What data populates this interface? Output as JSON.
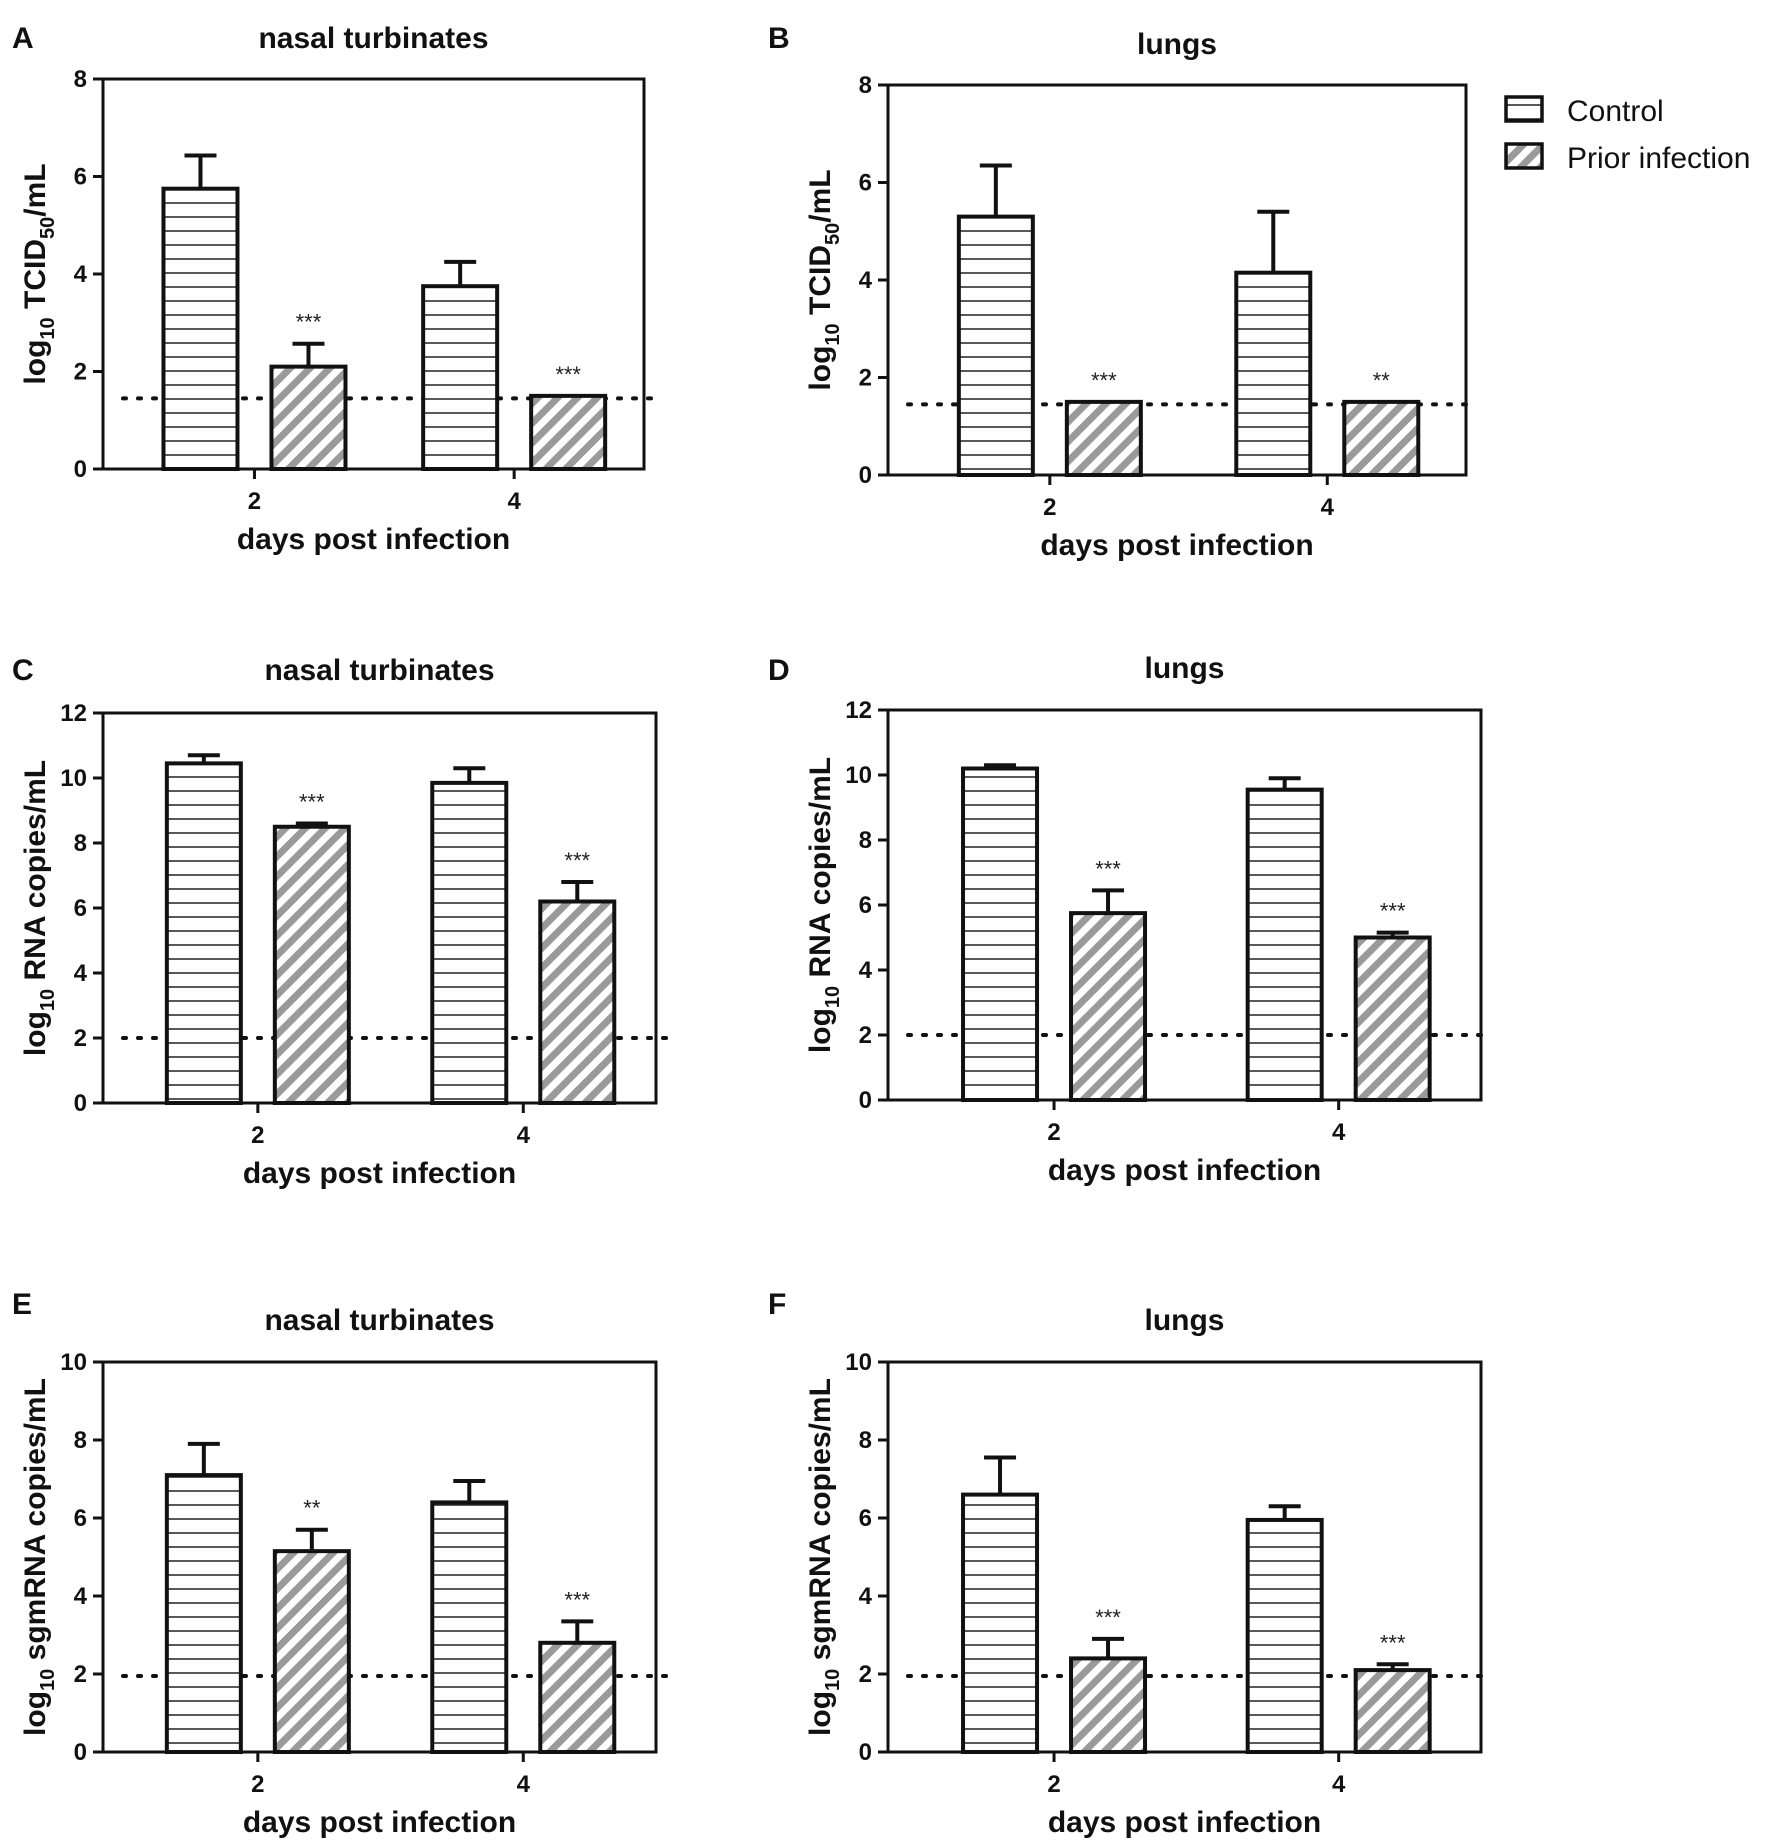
{
  "chart_data": [
    {
      "type": "bar",
      "panel": "A",
      "title": "nasal turbinates",
      "ylabel": {
        "prefix": "log",
        "sub": "10",
        "main": " TCID",
        "sub2": "50",
        "suffix": "/mL"
      },
      "xlabel": "days post infection",
      "categories": [
        "2",
        "4"
      ],
      "ylim": [
        0,
        8
      ],
      "yticks": [
        "0",
        "2",
        "4",
        "6",
        "8"
      ],
      "limit_of_detection": 1.45,
      "series": [
        {
          "name": "Control",
          "values": [
            5.75,
            3.75
          ],
          "errors": [
            0.68,
            0.5
          ]
        },
        {
          "name": "Prior infection",
          "values": [
            2.1,
            1.5
          ],
          "errors": [
            0.47,
            0
          ]
        }
      ],
      "significance": [
        "***",
        "***"
      ]
    },
    {
      "type": "bar",
      "panel": "B",
      "title": "lungs",
      "ylabel": {
        "prefix": "log",
        "sub": "10",
        "main": " TCID",
        "sub2": "50",
        "suffix": "/mL"
      },
      "xlabel": "days post infection",
      "categories": [
        "2",
        "4"
      ],
      "ylim": [
        0,
        8
      ],
      "yticks": [
        "0",
        "2",
        "4",
        "6",
        "8"
      ],
      "limit_of_detection": 1.45,
      "series": [
        {
          "name": "Control",
          "values": [
            5.3,
            4.15
          ],
          "errors": [
            1.05,
            1.25
          ]
        },
        {
          "name": "Prior infection",
          "values": [
            1.5,
            1.5
          ],
          "errors": [
            0,
            0
          ]
        }
      ],
      "significance": [
        "***",
        "**"
      ]
    },
    {
      "type": "bar",
      "panel": "C",
      "title": "nasal turbinates",
      "ylabel": {
        "prefix": "log",
        "sub": "10",
        "main": " RNA copies/mL",
        "sub2": "",
        "suffix": ""
      },
      "xlabel": "days post infection",
      "categories": [
        "2",
        "4"
      ],
      "ylim": [
        0,
        12
      ],
      "yticks": [
        "0",
        "2",
        "4",
        "6",
        "8",
        "10",
        "12"
      ],
      "limit_of_detection": 2.0,
      "series": [
        {
          "name": "Control",
          "values": [
            10.45,
            9.85
          ],
          "errors": [
            0.25,
            0.45
          ]
        },
        {
          "name": "Prior infection",
          "values": [
            8.5,
            6.2
          ],
          "errors": [
            0.1,
            0.6
          ]
        }
      ],
      "significance": [
        "***",
        "***"
      ]
    },
    {
      "type": "bar",
      "panel": "D",
      "title": "lungs",
      "ylabel": {
        "prefix": "log",
        "sub": "10",
        "main": " RNA copies/mL",
        "sub2": "",
        "suffix": ""
      },
      "xlabel": "days post infection",
      "categories": [
        "2",
        "4"
      ],
      "ylim": [
        0,
        12
      ],
      "yticks": [
        "0",
        "2",
        "4",
        "6",
        "8",
        "10",
        "12"
      ],
      "limit_of_detection": 2.0,
      "series": [
        {
          "name": "Control",
          "values": [
            10.2,
            9.55
          ],
          "errors": [
            0.1,
            0.35
          ]
        },
        {
          "name": "Prior infection",
          "values": [
            5.75,
            5.0
          ],
          "errors": [
            0.7,
            0.15
          ]
        }
      ],
      "significance": [
        "***",
        "***"
      ]
    },
    {
      "type": "bar",
      "panel": "E",
      "title": "nasal turbinates",
      "ylabel": {
        "prefix": "log",
        "sub": "10",
        "main": " sgmRNA copies/mL",
        "sub2": "",
        "suffix": ""
      },
      "xlabel": "days post infection",
      "categories": [
        "2",
        "4"
      ],
      "ylim": [
        0,
        10
      ],
      "yticks": [
        "0",
        "2",
        "4",
        "6",
        "8",
        "10"
      ],
      "limit_of_detection": 1.95,
      "series": [
        {
          "name": "Control",
          "values": [
            7.1,
            6.4
          ],
          "errors": [
            0.8,
            0.55
          ]
        },
        {
          "name": "Prior infection",
          "values": [
            5.15,
            2.8
          ],
          "errors": [
            0.55,
            0.55
          ]
        }
      ],
      "significance": [
        "**",
        "***"
      ]
    },
    {
      "type": "bar",
      "panel": "F",
      "title": "lungs",
      "ylabel": {
        "prefix": "log",
        "sub": "10",
        "main": " sgmRNA copies/mL",
        "sub2": "",
        "suffix": ""
      },
      "xlabel": "days post infection",
      "categories": [
        "2",
        "4"
      ],
      "ylim": [
        0,
        10
      ],
      "yticks": [
        "0",
        "2",
        "4",
        "6",
        "8",
        "10"
      ],
      "limit_of_detection": 1.95,
      "series": [
        {
          "name": "Control",
          "values": [
            6.6,
            5.95
          ],
          "errors": [
            0.95,
            0.35
          ]
        },
        {
          "name": "Prior infection",
          "values": [
            2.4,
            2.1
          ],
          "errors": [
            0.5,
            0.15
          ]
        }
      ],
      "significance": [
        "***",
        "***"
      ]
    }
  ],
  "legend": {
    "items": [
      {
        "name": "Control",
        "pattern": "horizontal-stripes"
      },
      {
        "name": "Prior infection",
        "pattern": "diagonal-stripes"
      }
    ]
  },
  "colors": {
    "bar_stroke": "#111111",
    "control_fill": "#ffffff",
    "prior_fill": "#ffffff",
    "hatch_color": "#9a9a9a",
    "line_color": "#111111"
  }
}
